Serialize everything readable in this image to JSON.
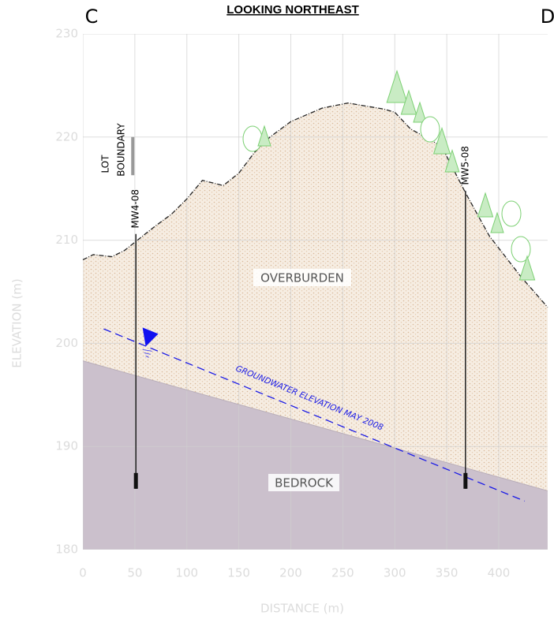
{
  "chart_data": {
    "type": "cross-section",
    "title": "LOOKING NORTHEAST",
    "section_start": "C",
    "section_end": "D",
    "x_label": "DISTANCE (m)",
    "y_label": "ELEVATION (m)",
    "xlim": [
      0,
      447
    ],
    "ylim": [
      180,
      230
    ],
    "xticks": [
      0,
      50,
      100,
      150,
      200,
      250,
      300,
      350,
      400
    ],
    "yticks": [
      180,
      190,
      200,
      210,
      220,
      230
    ],
    "grid": true,
    "series": [
      {
        "name": "OVERBURDEN",
        "color": "#f2e6d8",
        "x": [
          0,
          10,
          28,
          40,
          55,
          70,
          85,
          100,
          115,
          135,
          150,
          165,
          180,
          200,
          230,
          255,
          290,
          300,
          315,
          345,
          368,
          391,
          421,
          447
        ],
        "values": [
          208.1,
          208.6,
          208.4,
          209,
          210.2,
          211.4,
          212.5,
          214,
          215.8,
          215.3,
          216.5,
          218.5,
          220,
          221.5,
          222.8,
          223.3,
          222.7,
          222.4,
          220.8,
          219.1,
          214.6,
          210.4,
          206.5,
          203.5
        ]
      },
      {
        "name": "BEDROCK",
        "color": "#cbc0cc",
        "x": [
          0,
          447
        ],
        "values": [
          198.3,
          185.7
        ]
      },
      {
        "name": "GROUNDWATER ELEVATION MAY 2008",
        "color": "#1a1ae6",
        "x": [
          20,
          425
        ],
        "values": [
          201.4,
          184.7
        ]
      }
    ],
    "wells": [
      {
        "name": "MW4-08",
        "x": 51,
        "top": 210.6,
        "bottom": 185.9
      },
      {
        "name": "MW5-08",
        "x": 368,
        "top": 214.8,
        "bottom": 185.9
      }
    ],
    "lot_boundary": {
      "label_1": "LOT",
      "label_2": "BOUNDARY",
      "x": 48,
      "top": 220,
      "bottom": 216.3
    },
    "water_level": {
      "x": 65,
      "value": 200
    }
  }
}
